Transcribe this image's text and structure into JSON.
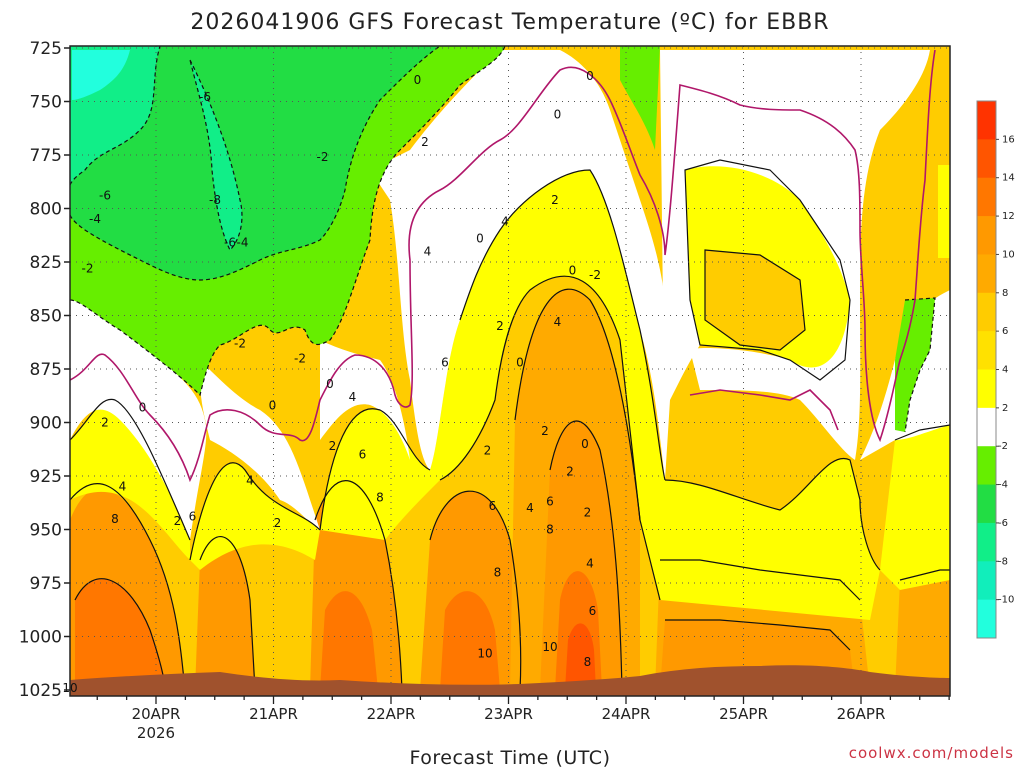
{
  "chart_data": {
    "type": "heatmap",
    "title": "2026041906 GFS Forecast Temperature (ºC) for EBBR",
    "xlabel": "Forecast Time (UTC)",
    "ylabel": "",
    "credit": "coolwx.com/models",
    "y_ticks": [
      "725",
      "750",
      "775",
      "800",
      "825",
      "850",
      "875",
      "900",
      "925",
      "950",
      "975",
      "1000",
      "1025"
    ],
    "y_values": [
      725,
      750,
      775,
      800,
      825,
      850,
      875,
      900,
      925,
      950,
      975,
      1000,
      1025
    ],
    "ylim": [
      725,
      1025
    ],
    "y_inverted": true,
    "x_ticks": [
      "20APR",
      "21APR",
      "22APR",
      "23APR",
      "24APR",
      "25APR",
      "26APR"
    ],
    "x_tick_sub": "2026",
    "grid": true,
    "colorbar": {
      "levels": [
        16,
        14,
        12,
        10,
        8,
        6,
        4,
        2,
        -2,
        -4,
        -6,
        -8,
        -10
      ],
      "colors": [
        "#ff3300",
        "#ff5500",
        "#ff7700",
        "#ff9900",
        "#ffaa00",
        "#ffcc00",
        "#ffe100",
        "#ffff00",
        "#ffffff",
        "#66ee00",
        "#22dd44",
        "#11ee88",
        "#11eebb",
        "#22ffdd"
      ]
    },
    "contour_labels": [
      {
        "x": 0.0,
        "p": 1024,
        "v": 10
      },
      {
        "x": 0.7,
        "p": 900,
        "v": 2
      },
      {
        "x": 0.9,
        "p": 945,
        "v": 8
      },
      {
        "x": 0.35,
        "p": 828,
        "v": -2
      },
      {
        "x": 0.5,
        "p": 805,
        "v": -4
      },
      {
        "x": 0.7,
        "p": 794,
        "v": -6
      },
      {
        "x": 1.05,
        "p": 930,
        "v": 4
      },
      {
        "x": 1.45,
        "p": 893,
        "v": 0
      },
      {
        "x": 2.15,
        "p": 946,
        "v": 2
      },
      {
        "x": 2.45,
        "p": 944,
        "v": 6
      },
      {
        "x": 2.7,
        "p": 748,
        "v": -6
      },
      {
        "x": 2.9,
        "p": 796,
        "v": -8
      },
      {
        "x": 3.2,
        "p": 816,
        "v": -6
      },
      {
        "x": 3.45,
        "p": 816,
        "v": -4
      },
      {
        "x": 3.4,
        "p": 863,
        "v": -2
      },
      {
        "x": 3.6,
        "p": 927,
        "v": 4
      },
      {
        "x": 4.05,
        "p": 892,
        "v": 0
      },
      {
        "x": 4.15,
        "p": 947,
        "v": 2
      },
      {
        "x": 4.6,
        "p": 870,
        "v": -2
      },
      {
        "x": 5.05,
        "p": 776,
        "v": -2
      },
      {
        "x": 5.2,
        "p": 882,
        "v": 0
      },
      {
        "x": 5.25,
        "p": 911,
        "v": 2
      },
      {
        "x": 5.65,
        "p": 888,
        "v": 4
      },
      {
        "x": 5.85,
        "p": 915,
        "v": 6
      },
      {
        "x": 6.2,
        "p": 935,
        "v": 8
      },
      {
        "x": 6.95,
        "p": 740,
        "v": 0
      },
      {
        "x": 7.1,
        "p": 769,
        "v": 2
      },
      {
        "x": 7.15,
        "p": 820,
        "v": 4
      },
      {
        "x": 7.5,
        "p": 872,
        "v": 6
      },
      {
        "x": 8.2,
        "p": 814,
        "v": 0
      },
      {
        "x": 8.3,
        "p": 1008,
        "v": 10
      },
      {
        "x": 8.35,
        "p": 913,
        "v": 2
      },
      {
        "x": 8.45,
        "p": 939,
        "v": 6
      },
      {
        "x": 8.55,
        "p": 970,
        "v": 8
      },
      {
        "x": 8.6,
        "p": 855,
        "v": 2
      },
      {
        "x": 8.7,
        "p": 806,
        "v": 4
      },
      {
        "x": 9.0,
        "p": 872,
        "v": 0
      },
      {
        "x": 9.2,
        "p": 940,
        "v": 4
      },
      {
        "x": 9.5,
        "p": 904,
        "v": 2
      },
      {
        "x": 9.6,
        "p": 1005,
        "v": 10
      },
      {
        "x": 9.6,
        "p": 937,
        "v": 6
      },
      {
        "x": 9.6,
        "p": 950,
        "v": 8
      },
      {
        "x": 9.7,
        "p": 796,
        "v": 2
      },
      {
        "x": 9.75,
        "p": 756,
        "v": 0
      },
      {
        "x": 9.75,
        "p": 853,
        "v": 4
      },
      {
        "x": 10.0,
        "p": 923,
        "v": 2
      },
      {
        "x": 10.05,
        "p": 829,
        "v": 0
      },
      {
        "x": 10.3,
        "p": 910,
        "v": 0
      },
      {
        "x": 10.35,
        "p": 1012,
        "v": 8
      },
      {
        "x": 10.35,
        "p": 942,
        "v": 2
      },
      {
        "x": 10.4,
        "p": 966,
        "v": 4
      },
      {
        "x": 10.45,
        "p": 988,
        "v": 6
      },
      {
        "x": 10.4,
        "p": 738,
        "v": 0
      },
      {
        "x": 10.5,
        "p": 831,
        "v": -2
      }
    ]
  }
}
